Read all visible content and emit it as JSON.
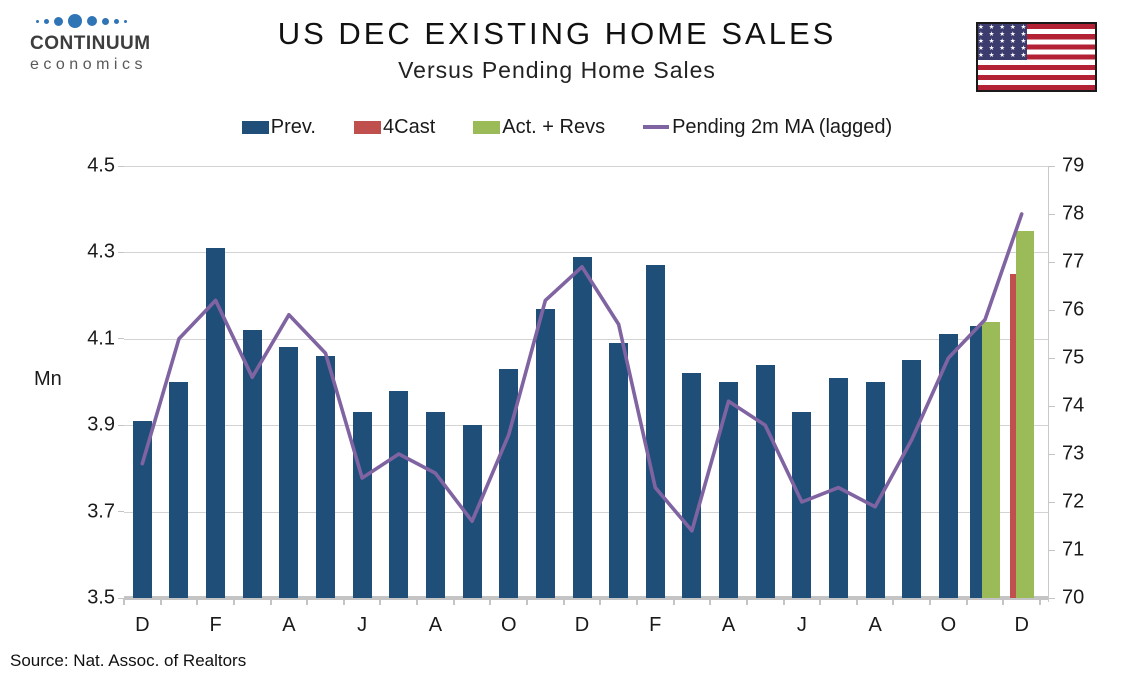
{
  "header": {
    "logo_line1": "CONTINUUM",
    "logo_line2": "economics",
    "title": "US DEC EXISTING HOME SALES",
    "subtitle": "Versus Pending Home Sales"
  },
  "flag": {
    "name": "us-flag",
    "stripe_red": "#b22234",
    "canton_blue": "#3c3b6e"
  },
  "legend": [
    {
      "label": "Prev.",
      "color": "#1F4E79",
      "marker": "swatch"
    },
    {
      "label": "4Cast",
      "color": "#C0504D",
      "marker": "swatch"
    },
    {
      "label": "Act. + Revs",
      "color": "#9BBB59",
      "marker": "swatch"
    },
    {
      "label": "Pending 2m MA (lagged)",
      "color": "#8064A2",
      "marker": "line"
    }
  ],
  "source": "Source: Nat. Assoc. of Realtors",
  "chart_data": {
    "type": "bar",
    "title": "US DEC EXISTING HOME SALES",
    "subtitle": "Versus Pending Home Sales",
    "x_labels": [
      "D",
      "",
      "F",
      "",
      "A",
      "",
      "J",
      "",
      "A",
      "",
      "O",
      "",
      "D",
      "",
      "F",
      "",
      "A",
      "",
      "J",
      "",
      "A",
      "",
      "O",
      "",
      "D"
    ],
    "left_axis": {
      "label": "Mn",
      "min": 3.5,
      "max": 4.5,
      "ticks": [
        4.5,
        4.3,
        4.1,
        3.9,
        3.7,
        3.5
      ]
    },
    "right_axis": {
      "min": 70,
      "max": 79,
      "ticks": [
        79,
        78,
        77,
        76,
        75,
        74,
        73,
        72,
        71,
        70
      ]
    },
    "grid": true,
    "legend_position": "top",
    "series": [
      {
        "name": "Prev.",
        "type": "bar",
        "axis": "left",
        "color": "#1F4E79",
        "values": [
          3.91,
          4.0,
          4.31,
          4.12,
          4.08,
          4.06,
          3.93,
          3.98,
          3.93,
          3.9,
          4.03,
          4.17,
          4.29,
          4.09,
          4.27,
          4.02,
          4.0,
          4.04,
          3.93,
          4.01,
          4.0,
          4.05,
          4.11,
          4.13,
          null
        ]
      },
      {
        "name": "4Cast",
        "type": "bar",
        "axis": "left",
        "color": "#C0504D",
        "values": [
          null,
          null,
          null,
          null,
          null,
          null,
          null,
          null,
          null,
          null,
          null,
          null,
          null,
          null,
          null,
          null,
          null,
          null,
          null,
          null,
          null,
          null,
          null,
          null,
          4.25
        ]
      },
      {
        "name": "Act. + Revs",
        "type": "bar",
        "axis": "left",
        "color": "#9BBB59",
        "values": [
          null,
          null,
          null,
          null,
          null,
          null,
          null,
          null,
          null,
          null,
          null,
          null,
          null,
          null,
          null,
          null,
          null,
          null,
          null,
          null,
          null,
          null,
          null,
          4.14,
          4.35
        ]
      },
      {
        "name": "Pending 2m MA (lagged)",
        "type": "line",
        "axis": "right",
        "color": "#8064A2",
        "values": [
          72.8,
          75.4,
          76.2,
          74.6,
          75.9,
          75.1,
          72.5,
          73.0,
          72.6,
          71.6,
          73.4,
          76.2,
          76.9,
          75.7,
          72.3,
          71.4,
          74.1,
          73.6,
          72.0,
          72.3,
          71.9,
          73.3,
          75.0,
          75.8,
          78.0
        ]
      }
    ]
  }
}
